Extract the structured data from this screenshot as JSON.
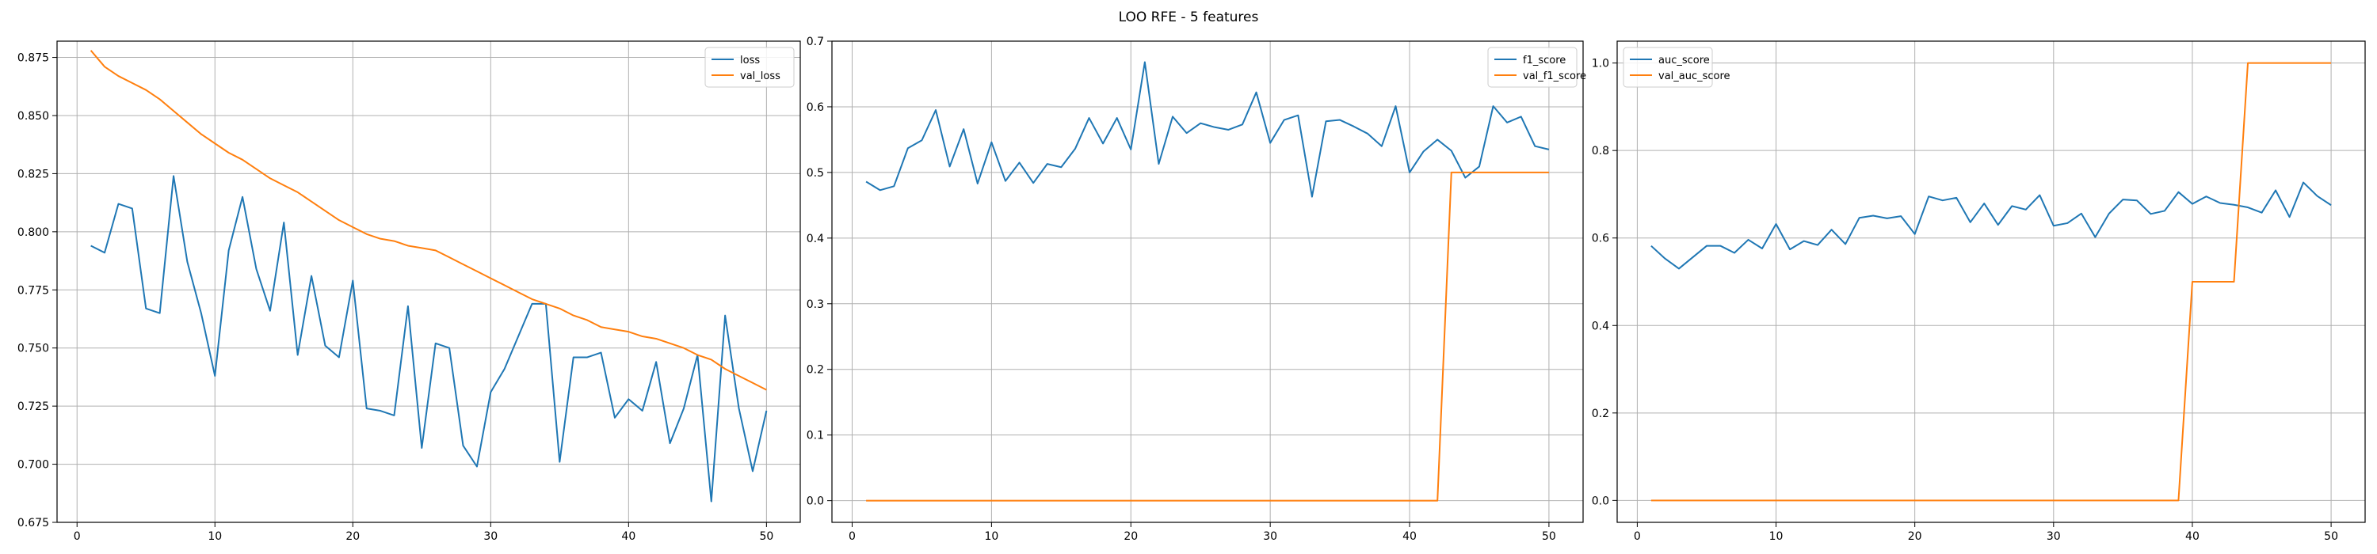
{
  "figure": {
    "title": "LOO RFE - 5 features"
  },
  "colors": {
    "series1": "#1f77b4",
    "series2": "#ff7f0e",
    "grid": "#b0b0b0",
    "axis": "#000000"
  },
  "chart_data": [
    {
      "type": "line",
      "title": "",
      "xlabel": "",
      "ylabel": "",
      "xlim": [
        -1.45,
        52.45
      ],
      "ylim": [
        0.675,
        0.882
      ],
      "xticks": [
        0,
        10,
        20,
        30,
        40,
        50
      ],
      "xtick_labels": [
        "0",
        "10",
        "20",
        "30",
        "40",
        "50"
      ],
      "yticks": [
        0.675,
        0.7,
        0.725,
        0.75,
        0.775,
        0.8,
        0.825,
        0.85,
        0.875
      ],
      "ytick_labels": [
        "0.675",
        "0.700",
        "0.725",
        "0.750",
        "0.775",
        "0.800",
        "0.825",
        "0.850",
        "0.875"
      ],
      "grid": true,
      "legend_position": "upper right",
      "series": [
        {
          "name": "loss",
          "color": "#1f77b4",
          "x": [
            1,
            2,
            3,
            4,
            5,
            6,
            7,
            8,
            9,
            10,
            11,
            12,
            13,
            14,
            15,
            16,
            17,
            18,
            19,
            20,
            21,
            22,
            23,
            24,
            25,
            26,
            27,
            28,
            29,
            30,
            31,
            32,
            33,
            34,
            35,
            36,
            37,
            38,
            39,
            40,
            41,
            42,
            43,
            44,
            45,
            46,
            47,
            48,
            49,
            50
          ],
          "values": [
            0.794,
            0.791,
            0.812,
            0.81,
            0.767,
            0.765,
            0.824,
            0.787,
            0.765,
            0.738,
            0.792,
            0.815,
            0.784,
            0.766,
            0.804,
            0.747,
            0.781,
            0.751,
            0.746,
            0.779,
            0.724,
            0.723,
            0.721,
            0.768,
            0.707,
            0.752,
            0.75,
            0.708,
            0.699,
            0.731,
            0.741,
            0.755,
            0.769,
            0.769,
            0.701,
            0.746,
            0.746,
            0.748,
            0.72,
            0.728,
            0.723,
            0.744,
            0.709,
            0.724,
            0.747,
            0.684,
            0.764,
            0.724,
            0.697,
            0.723
          ]
        },
        {
          "name": "val_loss",
          "color": "#ff7f0e",
          "x": [
            1,
            2,
            3,
            4,
            5,
            6,
            7,
            8,
            9,
            10,
            11,
            12,
            13,
            14,
            15,
            16,
            17,
            18,
            19,
            20,
            21,
            22,
            23,
            24,
            25,
            26,
            27,
            28,
            29,
            30,
            31,
            32,
            33,
            34,
            35,
            36,
            37,
            38,
            39,
            40,
            41,
            42,
            43,
            44,
            45,
            46,
            47,
            48,
            49,
            50
          ],
          "values": [
            0.878,
            0.871,
            0.867,
            0.864,
            0.861,
            0.857,
            0.852,
            0.847,
            0.842,
            0.838,
            0.834,
            0.831,
            0.827,
            0.823,
            0.82,
            0.817,
            0.813,
            0.809,
            0.805,
            0.802,
            0.799,
            0.797,
            0.796,
            0.794,
            0.793,
            0.792,
            0.789,
            0.786,
            0.783,
            0.78,
            0.777,
            0.774,
            0.771,
            0.769,
            0.767,
            0.764,
            0.762,
            0.759,
            0.758,
            0.757,
            0.755,
            0.754,
            0.752,
            0.75,
            0.747,
            0.745,
            0.741,
            0.738,
            0.735,
            0.732
          ]
        }
      ]
    },
    {
      "type": "line",
      "title": "",
      "xlabel": "",
      "ylabel": "",
      "xlim": [
        -1.45,
        52.45
      ],
      "ylim": [
        -0.033,
        0.7
      ],
      "xticks": [
        0,
        10,
        20,
        30,
        40,
        50
      ],
      "xtick_labels": [
        "0",
        "10",
        "20",
        "30",
        "40",
        "50"
      ],
      "yticks": [
        0.0,
        0.1,
        0.2,
        0.3,
        0.4,
        0.5,
        0.6,
        0.7
      ],
      "ytick_labels": [
        "0.0",
        "0.1",
        "0.2",
        "0.3",
        "0.4",
        "0.5",
        "0.6",
        "0.7"
      ],
      "grid": true,
      "legend_position": "upper right",
      "series": [
        {
          "name": "f1_score",
          "color": "#1f77b4",
          "x": [
            1,
            2,
            3,
            4,
            5,
            6,
            7,
            8,
            9,
            10,
            11,
            12,
            13,
            14,
            15,
            16,
            17,
            18,
            19,
            20,
            21,
            22,
            23,
            24,
            25,
            26,
            27,
            28,
            29,
            30,
            31,
            32,
            33,
            34,
            35,
            36,
            37,
            38,
            39,
            40,
            41,
            42,
            43,
            44,
            45,
            46,
            47,
            48,
            49,
            50
          ],
          "values": [
            0.486,
            0.473,
            0.479,
            0.537,
            0.549,
            0.595,
            0.509,
            0.566,
            0.483,
            0.546,
            0.487,
            0.515,
            0.484,
            0.513,
            0.508,
            0.536,
            0.583,
            0.544,
            0.583,
            0.535,
            0.668,
            0.513,
            0.585,
            0.56,
            0.575,
            0.569,
            0.565,
            0.573,
            0.622,
            0.545,
            0.58,
            0.587,
            0.463,
            0.578,
            0.58,
            0.57,
            0.559,
            0.54,
            0.601,
            0.5,
            0.532,
            0.55,
            0.533,
            0.492,
            0.509,
            0.601,
            0.576,
            0.585,
            0.54,
            0.535
          ]
        },
        {
          "name": "val_f1_score",
          "color": "#ff7f0e",
          "x": [
            1,
            2,
            3,
            4,
            5,
            6,
            7,
            8,
            9,
            10,
            11,
            12,
            13,
            14,
            15,
            16,
            17,
            18,
            19,
            20,
            21,
            22,
            23,
            24,
            25,
            26,
            27,
            28,
            29,
            30,
            31,
            32,
            33,
            34,
            35,
            36,
            37,
            38,
            39,
            40,
            41,
            42,
            43,
            44,
            45,
            46,
            47,
            48,
            49,
            50
          ],
          "values": [
            0,
            0,
            0,
            0,
            0,
            0,
            0,
            0,
            0,
            0,
            0,
            0,
            0,
            0,
            0,
            0,
            0,
            0,
            0,
            0,
            0,
            0,
            0,
            0,
            0,
            0,
            0,
            0,
            0,
            0,
            0,
            0,
            0,
            0,
            0,
            0,
            0,
            0,
            0,
            0,
            0,
            0,
            0.5,
            0.5,
            0.5,
            0.5,
            0.5,
            0.5,
            0.5,
            0.5
          ]
        }
      ]
    },
    {
      "type": "line",
      "title": "",
      "xlabel": "",
      "ylabel": "",
      "xlim": [
        -1.45,
        52.45
      ],
      "ylim": [
        -0.05,
        1.05
      ],
      "xticks": [
        0,
        10,
        20,
        30,
        40,
        50
      ],
      "xtick_labels": [
        "0",
        "10",
        "20",
        "30",
        "40",
        "50"
      ],
      "yticks": [
        0.0,
        0.2,
        0.4,
        0.6,
        0.8,
        1.0
      ],
      "ytick_labels": [
        "0.0",
        "0.2",
        "0.4",
        "0.6",
        "0.8",
        "1.0"
      ],
      "grid": true,
      "legend_position": "upper left",
      "series": [
        {
          "name": "auc_score",
          "color": "#1f77b4",
          "x": [
            1,
            2,
            3,
            4,
            5,
            6,
            7,
            8,
            9,
            10,
            11,
            12,
            13,
            14,
            15,
            16,
            17,
            18,
            19,
            20,
            21,
            22,
            23,
            24,
            25,
            26,
            27,
            28,
            29,
            30,
            31,
            32,
            33,
            34,
            35,
            36,
            37,
            38,
            39,
            40,
            41,
            42,
            43,
            44,
            45,
            46,
            47,
            48,
            49,
            50
          ],
          "values": [
            0.582,
            0.553,
            0.53,
            0.556,
            0.582,
            0.582,
            0.566,
            0.596,
            0.576,
            0.632,
            0.574,
            0.593,
            0.584,
            0.619,
            0.586,
            0.646,
            0.651,
            0.645,
            0.65,
            0.609,
            0.695,
            0.686,
            0.692,
            0.636,
            0.679,
            0.63,
            0.673,
            0.665,
            0.698,
            0.628,
            0.634,
            0.656,
            0.602,
            0.656,
            0.688,
            0.686,
            0.655,
            0.662,
            0.705,
            0.678,
            0.695,
            0.68,
            0.676,
            0.67,
            0.658,
            0.709,
            0.648,
            0.727,
            0.696,
            0.675
          ]
        },
        {
          "name": "val_auc_score",
          "color": "#ff7f0e",
          "x": [
            1,
            2,
            3,
            4,
            5,
            6,
            7,
            8,
            9,
            10,
            11,
            12,
            13,
            14,
            15,
            16,
            17,
            18,
            19,
            20,
            21,
            22,
            23,
            24,
            25,
            26,
            27,
            28,
            29,
            30,
            31,
            32,
            33,
            34,
            35,
            36,
            37,
            38,
            39,
            40,
            41,
            42,
            43,
            44,
            45,
            46,
            47,
            48,
            49,
            50
          ],
          "values": [
            0,
            0,
            0,
            0,
            0,
            0,
            0,
            0,
            0,
            0,
            0,
            0,
            0,
            0,
            0,
            0,
            0,
            0,
            0,
            0,
            0,
            0,
            0,
            0,
            0,
            0,
            0,
            0,
            0,
            0,
            0,
            0,
            0,
            0,
            0,
            0,
            0,
            0,
            0,
            0.5,
            0.5,
            0.5,
            0.5,
            1.0,
            1.0,
            1.0,
            1.0,
            1.0,
            1.0,
            1.0
          ]
        }
      ]
    }
  ]
}
